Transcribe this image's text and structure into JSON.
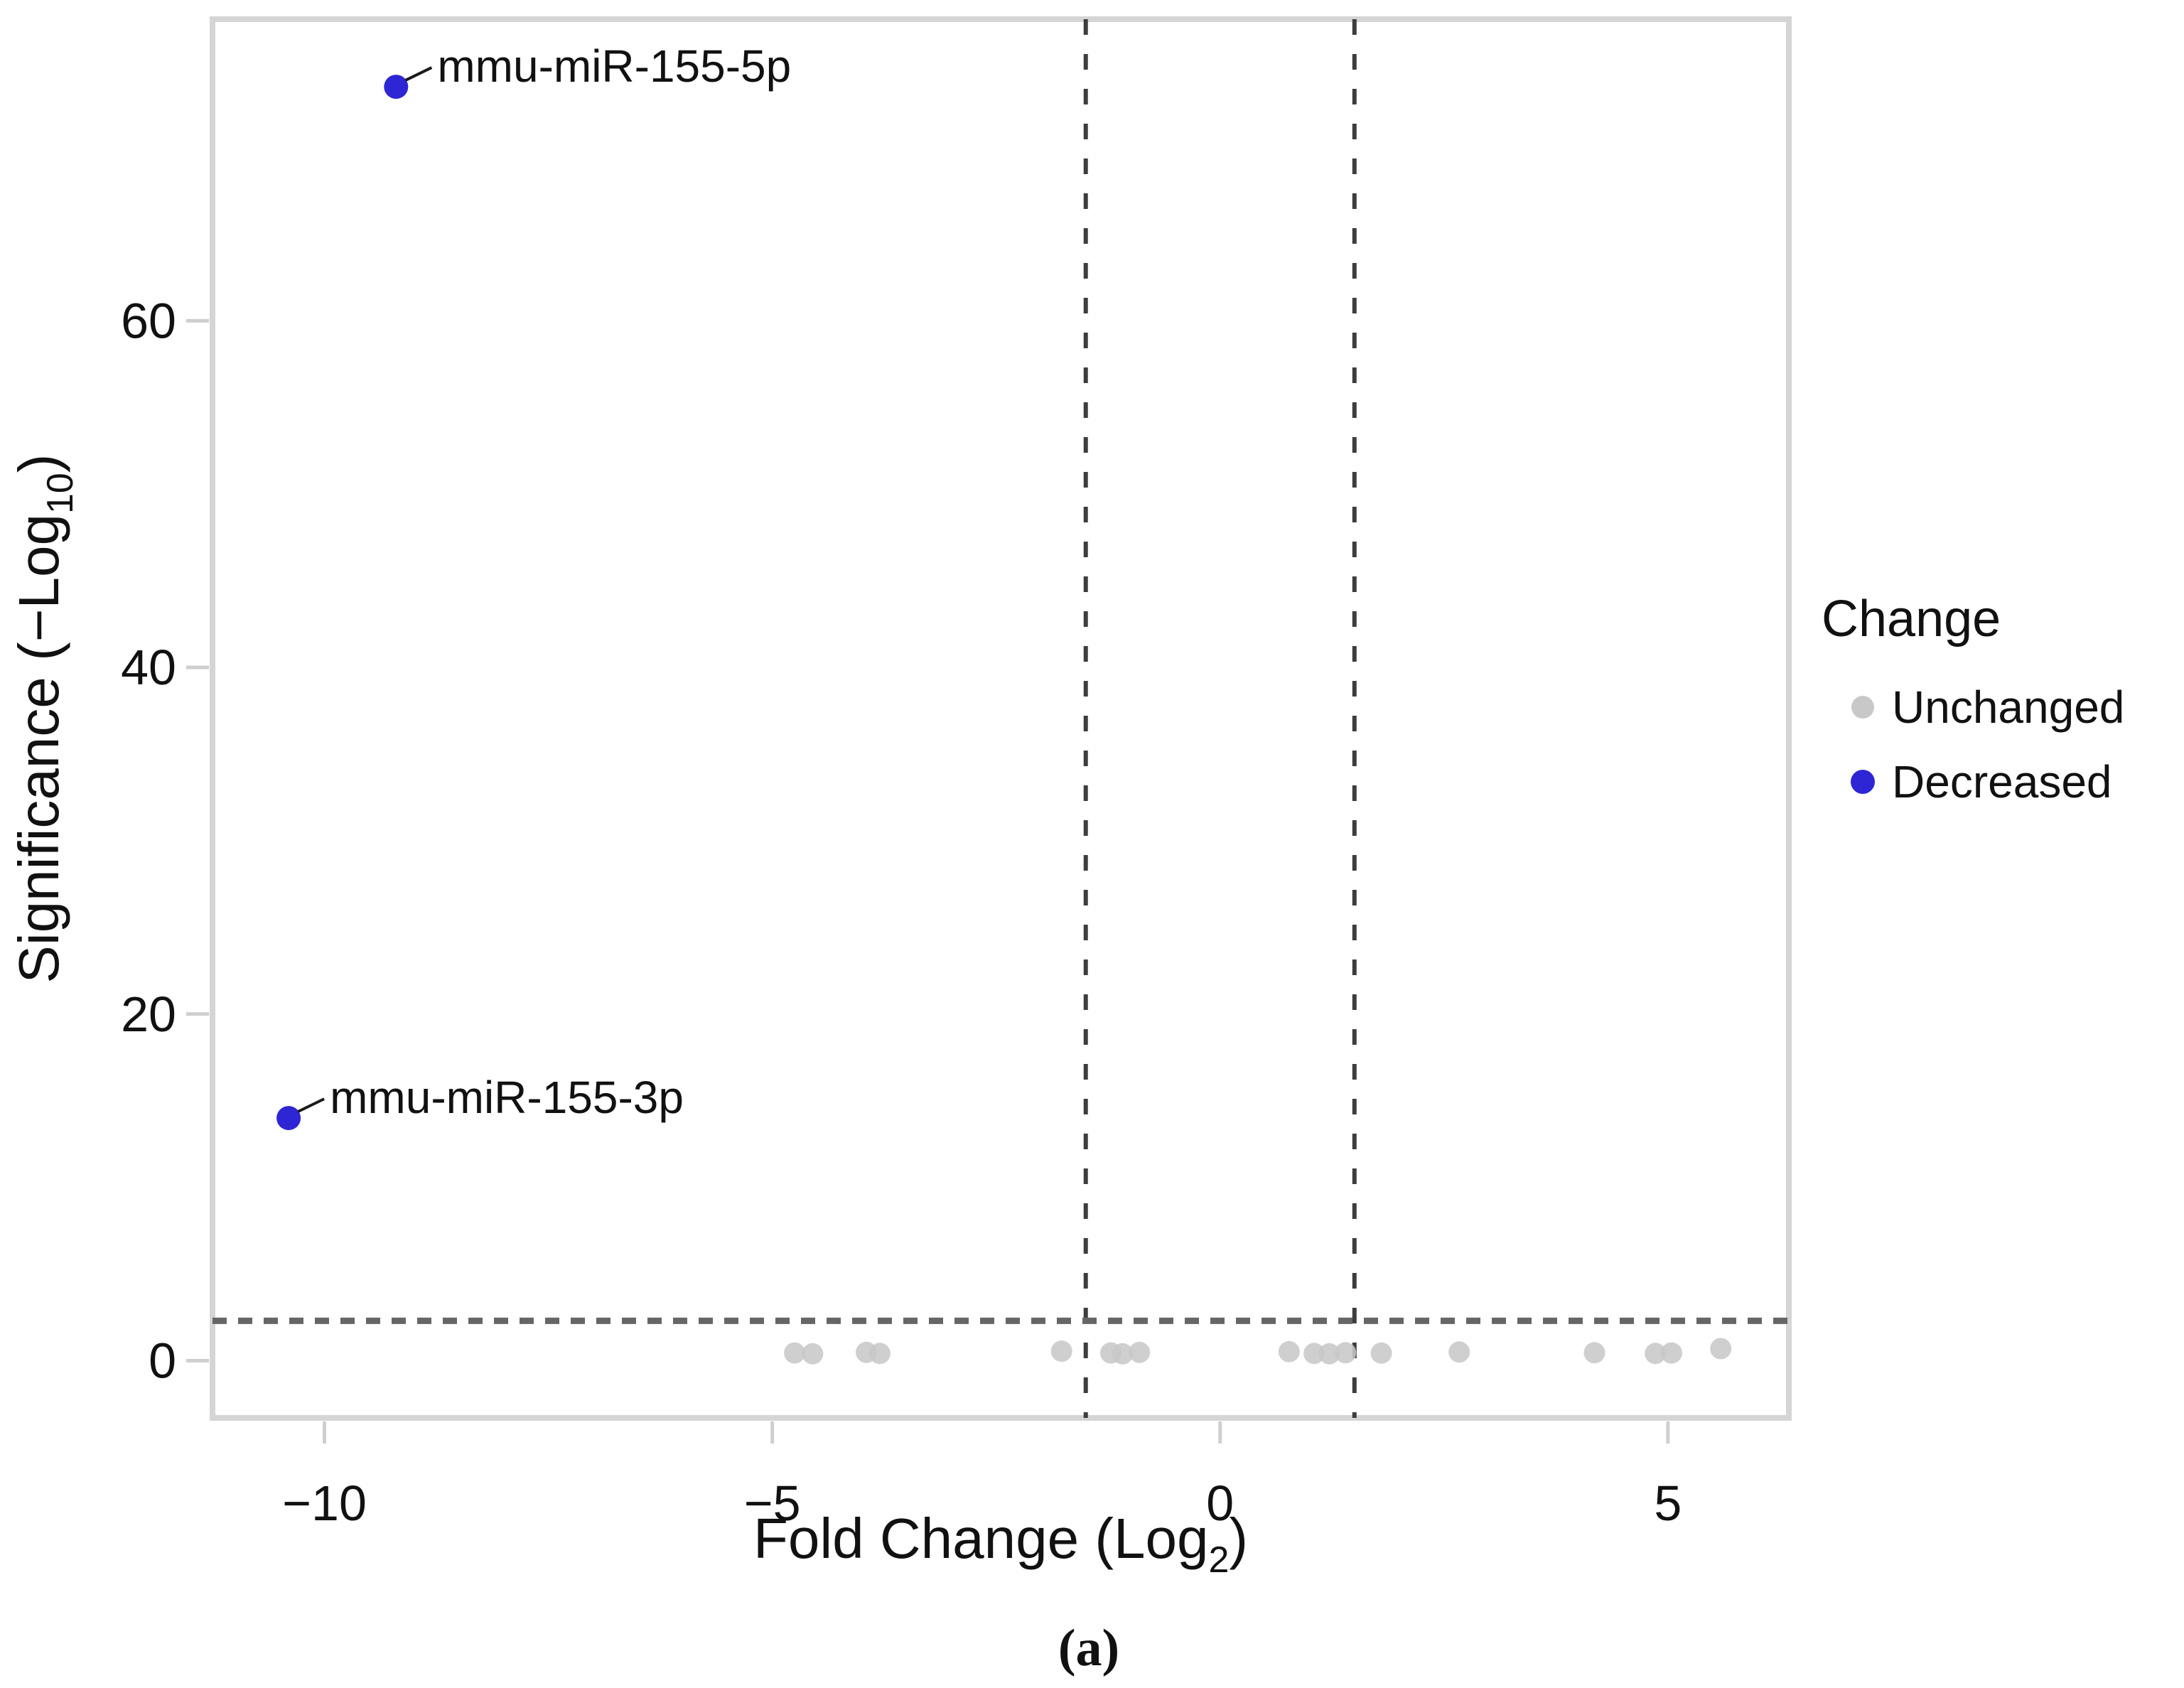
{
  "figure": {
    "caption": "(a)",
    "background": "#ffffff"
  },
  "colors": {
    "unchanged": "#c8c8c8",
    "decreased": "#2e26d4",
    "frame": "#d5d5d5",
    "tick": "#cfcfcf",
    "h_threshold_line": "#666666",
    "v_threshold_line": "#3d3d3d",
    "text": "#111111"
  },
  "chart_data": {
    "type": "scatter",
    "title": "",
    "xlabel": "Fold Change (Log2)",
    "ylabel": "Significance (−Log10)",
    "xlabel_parts": {
      "pre": "Fold Change (Log",
      "sub": "2",
      "post": ")"
    },
    "ylabel_parts": {
      "pre": "Significance (−Log",
      "sub": "10",
      "post": ")"
    },
    "x_range": [
      -11.25,
      6.35
    ],
    "y_range": [
      -3.3,
      77.4
    ],
    "grid": false,
    "x_ticks": [
      {
        "v": -10,
        "label": "−10"
      },
      {
        "v": -5,
        "label": "−5"
      },
      {
        "v": 0,
        "label": "0"
      },
      {
        "v": 5,
        "label": "5"
      }
    ],
    "y_ticks": [
      {
        "v": 0,
        "label": "0"
      },
      {
        "v": 20,
        "label": "20"
      },
      {
        "v": 40,
        "label": "40"
      },
      {
        "v": 60,
        "label": "60"
      }
    ],
    "thresholds": {
      "fold_change": [
        -1.5,
        1.5
      ],
      "significance": 2.3
    },
    "series": [
      {
        "name": "Unchanged",
        "color": "#c8c8c8",
        "opacity": 0.88,
        "radius": 15,
        "points": [
          {
            "x": -4.75,
            "y": 0.45
          },
          {
            "x": -4.55,
            "y": 0.4
          },
          {
            "x": -3.95,
            "y": 0.48
          },
          {
            "x": -3.8,
            "y": 0.42
          },
          {
            "x": -1.77,
            "y": 0.55
          },
          {
            "x": -1.22,
            "y": 0.45
          },
          {
            "x": -1.09,
            "y": 0.4
          },
          {
            "x": -0.9,
            "y": 0.48
          },
          {
            "x": 0.77,
            "y": 0.52
          },
          {
            "x": 1.05,
            "y": 0.42
          },
          {
            "x": 1.22,
            "y": 0.4
          },
          {
            "x": 1.4,
            "y": 0.46
          },
          {
            "x": 1.8,
            "y": 0.44
          },
          {
            "x": 2.67,
            "y": 0.5
          },
          {
            "x": 4.18,
            "y": 0.46
          },
          {
            "x": 4.86,
            "y": 0.42
          },
          {
            "x": 5.04,
            "y": 0.45
          },
          {
            "x": 5.59,
            "y": 0.7
          }
        ]
      },
      {
        "name": "Decreased",
        "color": "#2e26d4",
        "opacity": 1,
        "radius": 17,
        "points": [
          {
            "x": -9.2,
            "y": 73.5,
            "label": "mmu-miR-155-5p"
          },
          {
            "x": -10.4,
            "y": 14.0,
            "label": "mmu-miR-155-3p"
          }
        ]
      }
    ],
    "legend": {
      "title": "Change",
      "position": "right",
      "items": [
        {
          "label": "Unchanged",
          "color": "#c8c8c8"
        },
        {
          "label": "Decreased",
          "color": "#2e26d4"
        }
      ]
    }
  }
}
